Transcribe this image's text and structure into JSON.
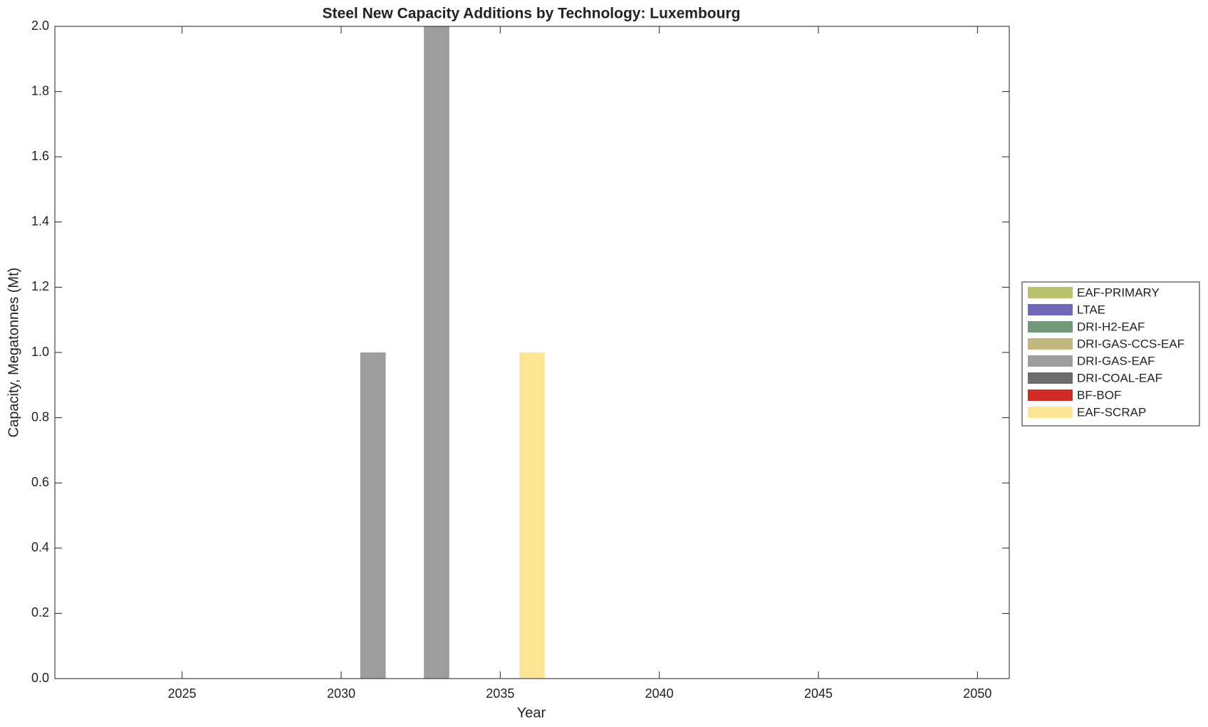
{
  "chart_data": {
    "type": "stacked_bar",
    "title": "Steel New Capacity Additions by Technology: Luxembourg",
    "xlabel": "Year",
    "ylabel": "Capacity, Megatonnes (Mt)",
    "x": [
      2031,
      2033,
      2036
    ],
    "series": [
      {
        "name": "EAF-PRIMARY",
        "color": "#b9c16a",
        "values": [
          0,
          0,
          0
        ]
      },
      {
        "name": "LTAE",
        "color": "#7068b8",
        "values": [
          0,
          0,
          0
        ]
      },
      {
        "name": "DRI-H2-EAF",
        "color": "#72987a",
        "values": [
          0,
          0,
          0
        ]
      },
      {
        "name": "DRI-GAS-CCS-EAF",
        "color": "#c2b87e",
        "values": [
          0,
          0,
          0
        ]
      },
      {
        "name": "DRI-GAS-EAF",
        "color": "#9d9d9b",
        "values": [
          1,
          2,
          0
        ]
      },
      {
        "name": "DRI-COAL-EAF",
        "color": "#6c6c6c",
        "values": [
          0,
          0,
          0
        ]
      },
      {
        "name": "BF-BOF",
        "color": "#d02b27",
        "values": [
          0,
          0,
          0
        ]
      },
      {
        "name": "EAF-SCRAP",
        "color": "#fde595",
        "values": [
          0,
          0,
          1
        ]
      }
    ],
    "xlim": [
      2021,
      2051
    ],
    "xticks": [
      2025,
      2030,
      2035,
      2040,
      2045,
      2050
    ],
    "ylim": [
      0,
      2
    ],
    "yticks": [
      {
        "value": 0,
        "label": "0.0"
      },
      {
        "value": 0.2,
        "label": "0.2"
      },
      {
        "value": 0.4,
        "label": "0.4"
      },
      {
        "value": 0.6,
        "label": "0.6"
      },
      {
        "value": 0.8,
        "label": "0.8"
      },
      {
        "value": 1,
        "label": "1.0"
      },
      {
        "value": 1.2,
        "label": "1.2"
      },
      {
        "value": 1.4,
        "label": "1.4"
      },
      {
        "value": 1.6,
        "label": "1.6"
      },
      {
        "value": 1.8,
        "label": "1.8"
      },
      {
        "value": 2,
        "label": "2.0"
      }
    ],
    "grid": false,
    "legend": "right"
  }
}
